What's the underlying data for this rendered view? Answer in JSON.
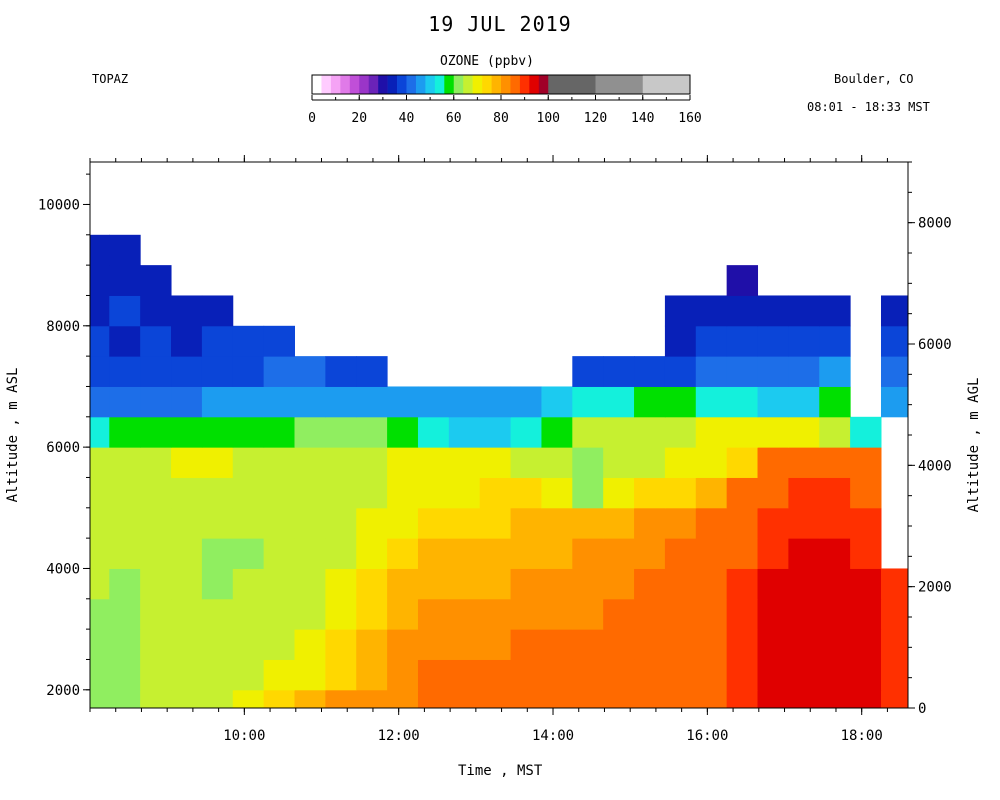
{
  "chart_data": {
    "type": "heatmap",
    "title": "19 JUL 2019",
    "instrument": "TOPAZ",
    "location": "Boulder, CO",
    "time_range": "08:01 - 18:33 MST",
    "xlabel": "Time , MST",
    "ylabel_left": "Altitude , m ASL",
    "ylabel_right": "Altitude , m AGL",
    "x_range_hours": [
      8.0,
      18.6
    ],
    "x_ticks": [
      {
        "value": 10,
        "label": "10:00"
      },
      {
        "value": 12,
        "label": "12:00"
      },
      {
        "value": 14,
        "label": "14:00"
      },
      {
        "value": 16,
        "label": "16:00"
      },
      {
        "value": 18,
        "label": "18:00"
      }
    ],
    "y_range_asl": [
      1700,
      10700
    ],
    "y_ticks_asl": [
      2000,
      4000,
      6000,
      8000,
      10000
    ],
    "y_ticks_agl": [
      0,
      2000,
      4000,
      6000,
      8000
    ],
    "agl_offset_m": 1700,
    "colorbar": {
      "title": "OZONE (ppbv)",
      "range": [
        0,
        160
      ],
      "tick_values": [
        0,
        20,
        40,
        60,
        80,
        100,
        120,
        140,
        160
      ],
      "bins": [
        {
          "lo": 0,
          "hi": 4,
          "color": "#ffffff"
        },
        {
          "lo": 4,
          "hi": 8,
          "color": "#ffccff"
        },
        {
          "lo": 8,
          "hi": 12,
          "color": "#f5a3f5"
        },
        {
          "lo": 12,
          "hi": 16,
          "color": "#e07ae8"
        },
        {
          "lo": 16,
          "hi": 20,
          "color": "#c04fd8"
        },
        {
          "lo": 20,
          "hi": 24,
          "color": "#9a35c8"
        },
        {
          "lo": 24,
          "hi": 28,
          "color": "#6a23b8"
        },
        {
          "lo": 28,
          "hi": 32,
          "color": "#1f0fa8"
        },
        {
          "lo": 32,
          "hi": 36,
          "color": "#0820b8"
        },
        {
          "lo": 36,
          "hi": 40,
          "color": "#0b45d8"
        },
        {
          "lo": 40,
          "hi": 44,
          "color": "#1d6ee8"
        },
        {
          "lo": 44,
          "hi": 48,
          "color": "#1c9cf0"
        },
        {
          "lo": 48,
          "hi": 52,
          "color": "#1ccaf0"
        },
        {
          "lo": 52,
          "hi": 56,
          "color": "#14f0dc"
        },
        {
          "lo": 56,
          "hi": 60,
          "color": "#00e000"
        },
        {
          "lo": 60,
          "hi": 64,
          "color": "#90ee60"
        },
        {
          "lo": 64,
          "hi": 68,
          "color": "#c6f030"
        },
        {
          "lo": 68,
          "hi": 72,
          "color": "#f0f000"
        },
        {
          "lo": 72,
          "hi": 76,
          "color": "#ffd800"
        },
        {
          "lo": 76,
          "hi": 80,
          "color": "#ffb400"
        },
        {
          "lo": 80,
          "hi": 84,
          "color": "#ff9000"
        },
        {
          "lo": 84,
          "hi": 88,
          "color": "#ff6a00"
        },
        {
          "lo": 88,
          "hi": 92,
          "color": "#ff3000"
        },
        {
          "lo": 92,
          "hi": 96,
          "color": "#e00000"
        },
        {
          "lo": 96,
          "hi": 100,
          "color": "#a00028"
        },
        {
          "lo": 100,
          "hi": 120,
          "color": "#666666"
        },
        {
          "lo": 120,
          "hi": 140,
          "color": "#909090"
        },
        {
          "lo": 140,
          "hi": 160,
          "color": "#c8c8c8"
        }
      ]
    },
    "columns_hours": [
      8.05,
      8.45,
      8.85,
      9.25,
      9.65,
      10.05,
      10.45,
      10.85,
      11.25,
      11.65,
      12.05,
      12.45,
      12.85,
      13.25,
      13.65,
      14.05,
      14.45,
      14.85,
      15.25,
      15.65,
      16.05,
      16.45,
      16.85,
      17.25,
      17.65,
      18.05,
      18.45
    ],
    "rows_asl": [
      1750,
      2250,
      2750,
      3250,
      3750,
      4250,
      4750,
      5250,
      5750,
      6250,
      6750,
      7250,
      7750,
      8250,
      8750,
      9250
    ],
    "ozone_ppbv": [
      [
        60,
        60,
        65,
        64,
        66,
        68,
        74,
        76,
        80,
        82,
        82,
        84,
        84,
        84,
        84,
        84,
        84,
        84,
        84,
        86,
        86,
        88,
        92,
        93,
        93,
        92,
        90
      ],
      [
        61,
        62,
        64,
        64,
        64,
        66,
        68,
        70,
        74,
        78,
        82,
        84,
        84,
        84,
        84,
        84,
        84,
        84,
        86,
        86,
        86,
        88,
        92,
        93,
        93,
        92,
        90
      ],
      [
        62,
        62,
        64,
        64,
        64,
        64,
        66,
        68,
        72,
        76,
        80,
        82,
        82,
        82,
        84,
        84,
        84,
        84,
        86,
        86,
        86,
        88,
        92,
        93,
        93,
        92,
        90
      ],
      [
        63,
        62,
        64,
        64,
        64,
        64,
        64,
        66,
        70,
        74,
        78,
        80,
        80,
        80,
        82,
        82,
        82,
        84,
        84,
        86,
        86,
        88,
        92,
        93,
        93,
        92,
        90
      ],
      [
        64,
        63,
        64,
        64,
        62,
        64,
        64,
        64,
        68,
        72,
        76,
        78,
        78,
        78,
        80,
        80,
        80,
        82,
        84,
        84,
        86,
        88,
        92,
        93,
        93,
        92,
        88
      ],
      [
        66,
        64,
        64,
        64,
        63,
        62,
        64,
        64,
        66,
        70,
        74,
        76,
        76,
        76,
        78,
        78,
        80,
        80,
        82,
        84,
        84,
        86,
        90,
        92,
        92,
        90,
        0
      ],
      [
        66,
        64,
        64,
        64,
        64,
        64,
        64,
        64,
        66,
        68,
        70,
        72,
        74,
        74,
        76,
        76,
        76,
        78,
        80,
        82,
        84,
        86,
        88,
        90,
        90,
        88,
        0
      ],
      [
        66,
        64,
        64,
        64,
        66,
        66,
        64,
        64,
        66,
        66,
        68,
        70,
        70,
        72,
        72,
        70,
        60,
        70,
        72,
        74,
        76,
        84,
        86,
        88,
        88,
        86,
        0
      ],
      [
        64,
        66,
        66,
        68,
        68,
        66,
        66,
        66,
        66,
        66,
        68,
        68,
        68,
        68,
        66,
        64,
        62,
        66,
        66,
        68,
        70,
        72,
        84,
        84,
        86,
        84,
        0
      ],
      [
        54,
        56,
        58,
        58,
        58,
        58,
        58,
        60,
        62,
        62,
        56,
        52,
        50,
        50,
        52,
        58,
        64,
        66,
        66,
        66,
        68,
        70,
        70,
        70,
        64,
        52,
        0
      ],
      [
        42,
        42,
        42,
        42,
        44,
        46,
        46,
        46,
        44,
        44,
        46,
        46,
        44,
        44,
        46,
        50,
        52,
        54,
        56,
        56,
        54,
        52,
        50,
        48,
        56,
        0,
        46
      ],
      [
        38,
        38,
        38,
        36,
        36,
        38,
        40,
        40,
        38,
        36,
        0,
        0,
        0,
        0,
        0,
        0,
        38,
        38,
        36,
        36,
        40,
        42,
        40,
        42,
        44,
        0,
        40
      ],
      [
        36,
        34,
        36,
        34,
        36,
        36,
        38,
        0,
        0,
        0,
        0,
        0,
        0,
        0,
        0,
        0,
        0,
        0,
        0,
        34,
        38,
        36,
        38,
        36,
        38,
        0,
        36
      ],
      [
        34,
        36,
        34,
        32,
        34,
        0,
        0,
        0,
        0,
        0,
        0,
        0,
        0,
        0,
        0,
        0,
        0,
        0,
        0,
        34,
        34,
        34,
        34,
        34,
        34,
        0,
        34
      ],
      [
        34,
        32,
        32,
        0,
        0,
        0,
        0,
        0,
        0,
        0,
        0,
        0,
        0,
        0,
        0,
        0,
        0,
        0,
        0,
        0,
        0,
        30,
        0,
        0,
        0,
        0,
        0
      ],
      [
        32,
        32,
        0,
        0,
        0,
        0,
        0,
        0,
        0,
        0,
        0,
        0,
        0,
        0,
        0,
        0,
        0,
        0,
        0,
        0,
        0,
        0,
        0,
        0,
        0,
        0,
        0
      ]
    ],
    "grid": false
  }
}
